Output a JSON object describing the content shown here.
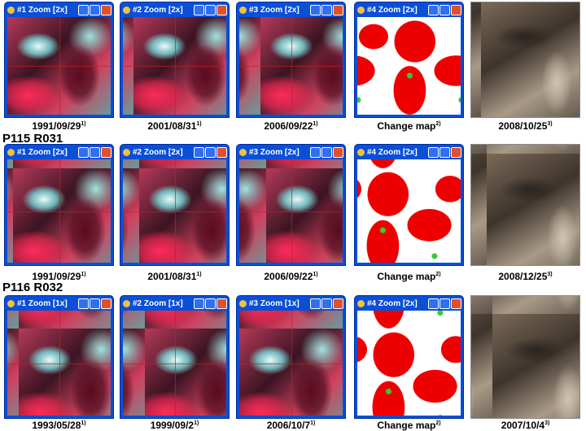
{
  "rows": [
    {
      "panels": [
        {
          "window_title": "#1 Zoom [2x]",
          "caption": "1991/09/29",
          "note": "1)",
          "kind": "false-color"
        },
        {
          "window_title": "#2 Zoom [2x]",
          "caption": "2001/08/31",
          "note": "1)",
          "kind": "false-color"
        },
        {
          "window_title": "#3 Zoom [2x]",
          "caption": "2006/09/22",
          "note": "1)",
          "kind": "false-color"
        },
        {
          "window_title": "#4 Zoom [2x]",
          "caption": "Change map",
          "note": "2)",
          "kind": "change-map"
        },
        {
          "caption": "2008/10/25",
          "note": "3)",
          "kind": "photo"
        }
      ]
    },
    {
      "label": "P115 R031",
      "panels": [
        {
          "window_title": "#1 Zoom [2x]",
          "caption": "1991/09/29",
          "note": "1)",
          "kind": "false-color"
        },
        {
          "window_title": "#2 Zoom [2x]",
          "caption": "2001/08/31",
          "note": "1)",
          "kind": "false-color"
        },
        {
          "window_title": "#3 Zoom [2x]",
          "caption": "2006/09/22",
          "note": "1)",
          "kind": "false-color"
        },
        {
          "window_title": "#4 Zoom [2x]",
          "caption": "Change map",
          "note": "2)",
          "kind": "change-map"
        },
        {
          "caption": "2008/12/25",
          "note": "3)",
          "kind": "photo"
        }
      ]
    },
    {
      "label": "P116 R032",
      "panels": [
        {
          "window_title": "#1 Zoom [1x]",
          "caption": "1993/05/28",
          "note": "1)",
          "kind": "false-color"
        },
        {
          "window_title": "#2 Zoom [1x]",
          "caption": "1999/09/2",
          "note": "1)",
          "kind": "false-color"
        },
        {
          "window_title": "#3 Zoom [1x]",
          "caption": "2006/10/7",
          "note": "1)",
          "kind": "false-color"
        },
        {
          "window_title": "#4 Zoom [2x]",
          "caption": "Change map",
          "note": "2)",
          "kind": "change-map"
        },
        {
          "caption": "2007/10/4",
          "note": "3)",
          "kind": "photo"
        }
      ]
    }
  ]
}
